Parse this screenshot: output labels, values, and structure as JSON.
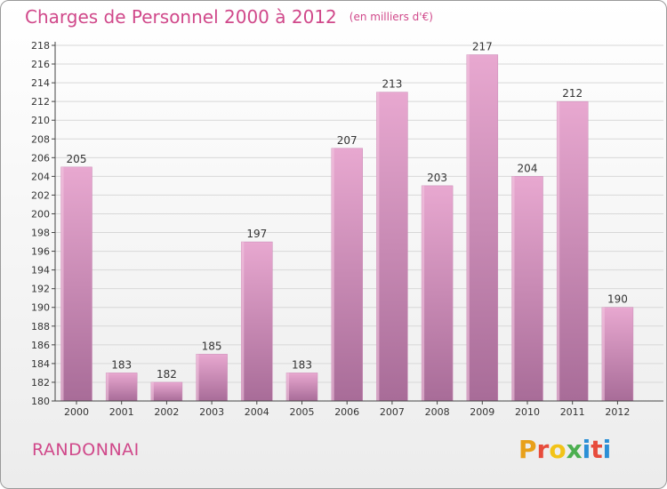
{
  "header": {
    "title": "Charges de Personnel 2000 à 2012",
    "subtitle": "(en milliers d'€)"
  },
  "footer": {
    "commune": "RANDONNAI",
    "logo_letters": [
      "P",
      "r",
      "o",
      "x",
      "i",
      "t",
      "i"
    ],
    "logo_colors": [
      "#e8a01a",
      "#e74c3c",
      "#f2c318",
      "#4caf50",
      "#2b8fd6",
      "#e74c3c",
      "#2b8fd6"
    ]
  },
  "colors": {
    "title": "#d0488a",
    "bar_top": "#e8a8d0",
    "bar_bottom": "#a86c98",
    "grid": "#d8d8d8"
  },
  "chart_data": {
    "type": "bar",
    "categories": [
      "2000",
      "2001",
      "2002",
      "2003",
      "2004",
      "2005",
      "2006",
      "2007",
      "2008",
      "2009",
      "2010",
      "2011",
      "2012"
    ],
    "values": [
      205,
      183,
      182,
      185,
      197,
      183,
      207,
      213,
      203,
      217,
      204,
      212,
      190
    ],
    "ylim": [
      180,
      218
    ],
    "ytick_step": 2,
    "grid": true,
    "title": "Charges de Personnel 2000 à 2012",
    "xlabel": "",
    "ylabel": ""
  }
}
